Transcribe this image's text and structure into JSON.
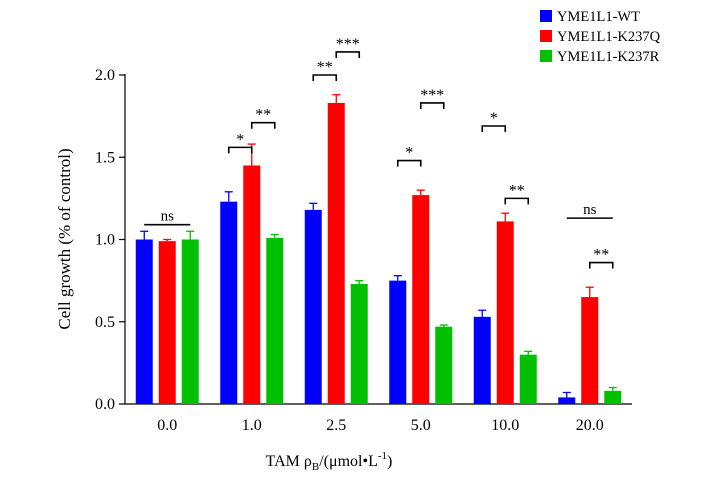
{
  "chart_data": {
    "type": "bar",
    "categories": [
      "0.0",
      "1.0",
      "2.5",
      "5.0",
      "10.0",
      "20.0"
    ],
    "series": [
      {
        "name": "YME1L1-WT",
        "color": "#0000ff",
        "values": [
          1.0,
          1.23,
          1.18,
          0.75,
          0.53,
          0.04
        ],
        "errors": [
          0.05,
          0.06,
          0.04,
          0.03,
          0.04,
          0.03
        ]
      },
      {
        "name": "YME1L1-K237Q",
        "color": "#ff0000",
        "values": [
          0.99,
          1.45,
          1.83,
          1.27,
          1.11,
          0.65
        ],
        "errors": [
          0.01,
          0.13,
          0.05,
          0.03,
          0.05,
          0.06
        ]
      },
      {
        "name": "YME1L1-K237R",
        "color": "#00c000",
        "values": [
          1.0,
          1.01,
          0.73,
          0.47,
          0.3,
          0.08
        ],
        "errors": [
          0.05,
          0.02,
          0.02,
          0.01,
          0.02,
          0.02
        ]
      }
    ],
    "ylim": [
      0,
      2.0
    ],
    "yticks": [
      "0.0",
      "0.5",
      "1.0",
      "1.5",
      "2.0"
    ],
    "ylabel": "Cell growth (% of control)",
    "xlabel": {
      "main": "TAM ρ",
      "sub": "B",
      "mid": "/(μmol•L",
      "sup": "-1",
      "end": ")"
    },
    "legend_position": "top-right",
    "grid": false,
    "significance": [
      {
        "label": "ns",
        "group": 0,
        "from": 0,
        "to": 2,
        "y": 1.09
      },
      {
        "label": "*",
        "group": 1,
        "from": 0,
        "to": 1,
        "y": 1.56
      },
      {
        "label": "**",
        "group": 1,
        "from": 1,
        "to": 2,
        "y": 1.71
      },
      {
        "label": "**",
        "group": 2,
        "from": 0,
        "to": 1,
        "y": 2.0
      },
      {
        "label": "***",
        "group": 2,
        "from": 1,
        "to": 2,
        "y": 2.14
      },
      {
        "label": "*",
        "group": 3,
        "from": 0,
        "to": 1,
        "y": 1.48
      },
      {
        "label": "***",
        "group": 3,
        "from": 1,
        "to": 2,
        "y": 1.83
      },
      {
        "label": "*",
        "group": 4,
        "from": 0,
        "to": 1,
        "y": 1.69
      },
      {
        "label": "**",
        "group": 4,
        "from": 1,
        "to": 2,
        "y": 1.25
      },
      {
        "label": "ns",
        "group": 5,
        "from": 0,
        "to": 2,
        "y": 1.13
      },
      {
        "label": "**",
        "group": 5,
        "from": 1,
        "to": 2,
        "y": 0.86
      }
    ]
  }
}
